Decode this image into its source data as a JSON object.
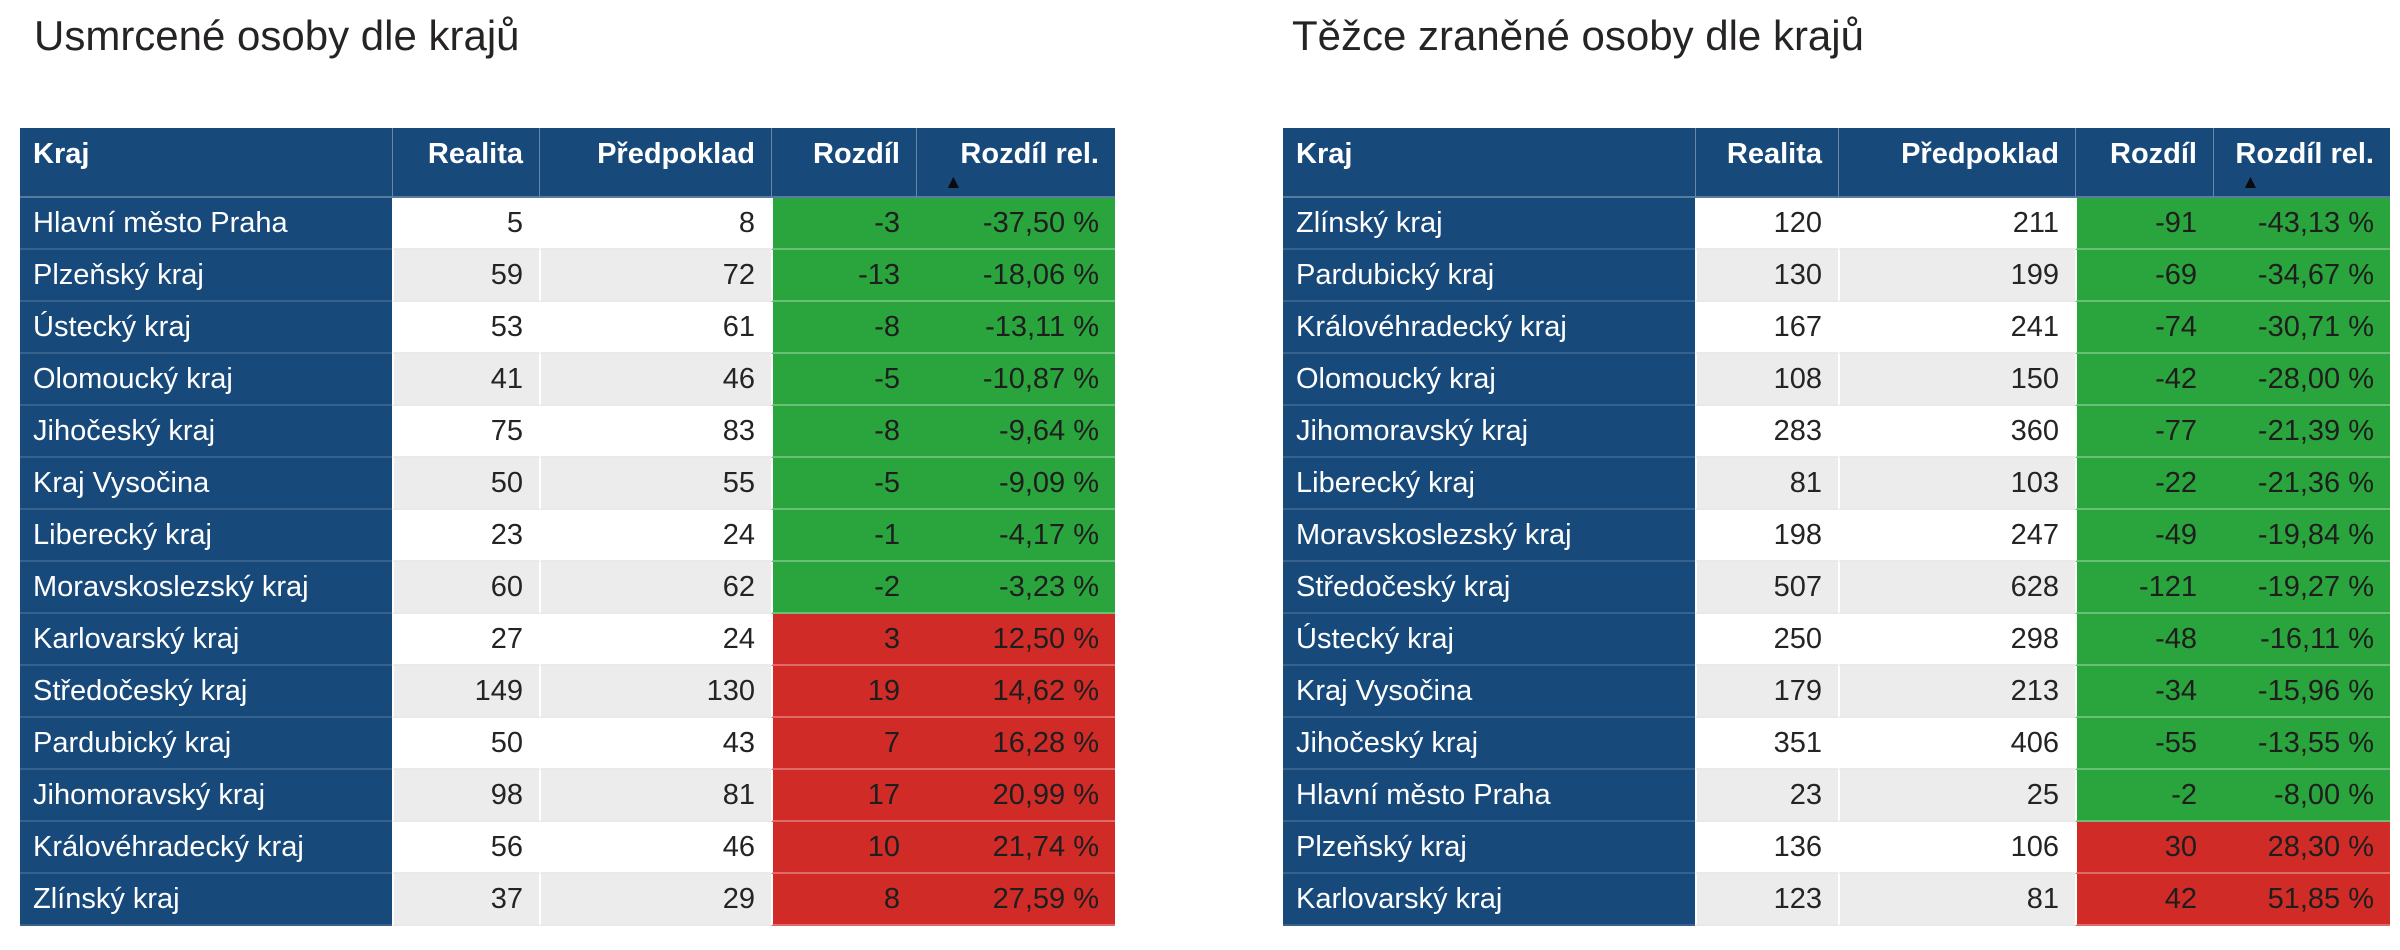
{
  "colors": {
    "header_bg": "#17497B",
    "kraj_column_bg": "#17497B",
    "header_text": "#FFFFFF",
    "body_text": "#252423",
    "negative_diff_bg": "#2AA43C",
    "positive_diff_bg": "#D02B27",
    "alt_row_bg": "#ECECEC",
    "title_text": "#252423"
  },
  "sort_indicator": {
    "icon": "▲",
    "column": "Rozdíl rel.",
    "direction": "ascending"
  },
  "chart_data": [
    {
      "type": "table",
      "title": "Usmrcené osoby dle krajů",
      "columns": [
        "Kraj",
        "Realita",
        "Předpoklad",
        "Rozdíl",
        "Rozdíl rel."
      ],
      "sort": {
        "column": "Rozdíl rel.",
        "direction": "ascending"
      },
      "rows": [
        [
          "Hlavní město Praha",
          5,
          8,
          -3,
          "-37,50 %"
        ],
        [
          "Plzeňský kraj",
          59,
          72,
          -13,
          "-18,06 %"
        ],
        [
          "Ústecký kraj",
          53,
          61,
          -8,
          "-13,11 %"
        ],
        [
          "Olomoucký kraj",
          41,
          46,
          -5,
          "-10,87 %"
        ],
        [
          "Jihočeský kraj",
          75,
          83,
          -8,
          "-9,64 %"
        ],
        [
          "Kraj Vysočina",
          50,
          55,
          -5,
          "-9,09 %"
        ],
        [
          "Liberecký kraj",
          23,
          24,
          -1,
          "-4,17 %"
        ],
        [
          "Moravskoslezský kraj",
          60,
          62,
          -2,
          "-3,23 %"
        ],
        [
          "Karlovarský kraj",
          27,
          24,
          3,
          "12,50 %"
        ],
        [
          "Středočeský kraj",
          149,
          130,
          19,
          "14,62 %"
        ],
        [
          "Pardubický kraj",
          50,
          43,
          7,
          "16,28 %"
        ],
        [
          "Jihomoravský kraj",
          98,
          81,
          17,
          "20,99 %"
        ],
        [
          "Královéhradecký kraj",
          56,
          46,
          10,
          "21,74 %"
        ],
        [
          "Zlínský kraj",
          37,
          29,
          8,
          "27,59 %"
        ]
      ]
    },
    {
      "type": "table",
      "title": "Těžce zraněné osoby dle krajů",
      "columns": [
        "Kraj",
        "Realita",
        "Předpoklad",
        "Rozdíl",
        "Rozdíl rel."
      ],
      "sort": {
        "column": "Rozdíl rel.",
        "direction": "ascending"
      },
      "rows": [
        [
          "Zlínský kraj",
          120,
          211,
          -91,
          "-43,13 %"
        ],
        [
          "Pardubický kraj",
          130,
          199,
          -69,
          "-34,67 %"
        ],
        [
          "Královéhradecký kraj",
          167,
          241,
          -74,
          "-30,71 %"
        ],
        [
          "Olomoucký kraj",
          108,
          150,
          -42,
          "-28,00 %"
        ],
        [
          "Jihomoravský kraj",
          283,
          360,
          -77,
          "-21,39 %"
        ],
        [
          "Liberecký kraj",
          81,
          103,
          -22,
          "-21,36 %"
        ],
        [
          "Moravskoslezský kraj",
          198,
          247,
          -49,
          "-19,84 %"
        ],
        [
          "Středočeský kraj",
          507,
          628,
          -121,
          "-19,27 %"
        ],
        [
          "Ústecký kraj",
          250,
          298,
          -48,
          "-16,11 %"
        ],
        [
          "Kraj Vysočina",
          179,
          213,
          -34,
          "-15,96 %"
        ],
        [
          "Jihočeský kraj",
          351,
          406,
          -55,
          "-13,55 %"
        ],
        [
          "Hlavní město Praha",
          23,
          25,
          -2,
          "-8,00 %"
        ],
        [
          "Plzeňský kraj",
          136,
          106,
          30,
          "28,30 %"
        ],
        [
          "Karlovarský kraj",
          123,
          81,
          42,
          "51,85 %"
        ]
      ]
    }
  ]
}
